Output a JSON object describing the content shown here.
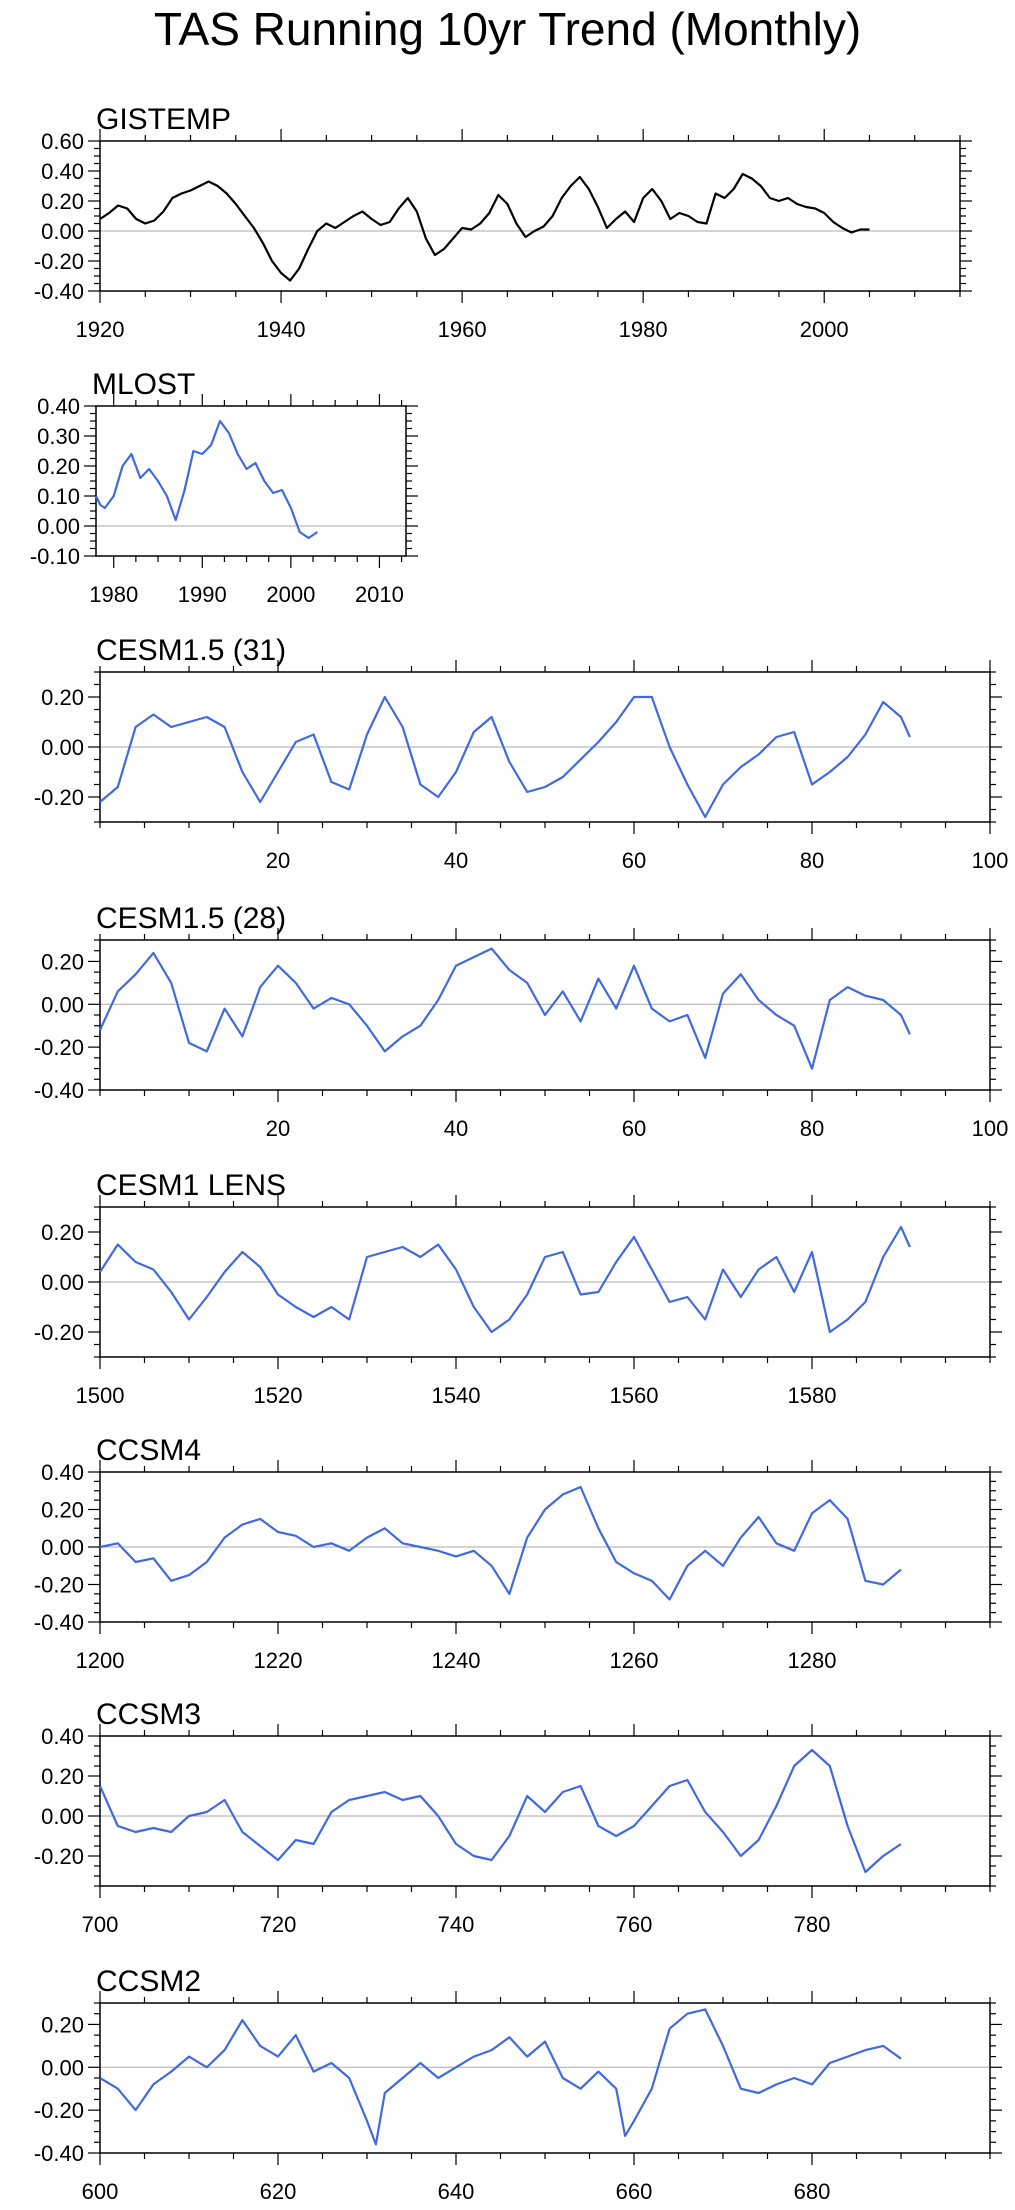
{
  "title": "TAS Running 10yr Trend (Monthly)",
  "colors": {
    "observed": "#000000",
    "model": "#4169e1",
    "zero_line": "#aaaaaa",
    "axis": "#000000"
  },
  "chart_data": [
    {
      "type": "line",
      "title": "GISTEMP",
      "xlim": [
        1920,
        2015
      ],
      "ylim": [
        -0.4,
        0.6
      ],
      "xticks": [
        1920,
        1940,
        1960,
        1980,
        2000
      ],
      "xtick_labels": [
        "1920",
        "1940",
        "1960",
        "1980",
        "2000"
      ],
      "yticks": [
        -0.4,
        -0.2,
        0.0,
        0.2,
        0.4,
        0.6
      ],
      "ytick_labels": [
        "-0.40",
        "-0.20",
        "0.00",
        "0.20",
        "0.40",
        "0.60"
      ],
      "series": [
        {
          "color": "#000000",
          "x": [
            1920,
            1921,
            1922,
            1923,
            1924,
            1925,
            1926,
            1927,
            1928,
            1929,
            1930,
            1931,
            1932,
            1933,
            1934,
            1935,
            1936,
            1937,
            1938,
            1939,
            1940,
            1941,
            1942,
            1943,
            1944,
            1945,
            1946,
            1947,
            1948,
            1949,
            1950,
            1951,
            1952,
            1953,
            1954,
            1955,
            1956,
            1957,
            1958,
            1959,
            1960,
            1961,
            1962,
            1963,
            1964,
            1965,
            1966,
            1967,
            1968,
            1969,
            1970,
            1971,
            1972,
            1973,
            1974,
            1975,
            1976,
            1977,
            1978,
            1979,
            1980,
            1981,
            1982,
            1983,
            1984,
            1985,
            1986,
            1987,
            1988,
            1989,
            1990,
            1991,
            1992,
            1993,
            1994,
            1995,
            1996,
            1997,
            1998,
            1999,
            2000,
            2001,
            2002,
            2003,
            2004,
            2005
          ],
          "y": [
            0.08,
            0.12,
            0.17,
            0.15,
            0.08,
            0.05,
            0.07,
            0.13,
            0.22,
            0.25,
            0.27,
            0.3,
            0.33,
            0.3,
            0.25,
            0.18,
            0.1,
            0.02,
            -0.08,
            -0.2,
            -0.28,
            -0.33,
            -0.25,
            -0.12,
            0.0,
            0.05,
            0.02,
            0.06,
            0.1,
            0.13,
            0.08,
            0.04,
            0.06,
            0.15,
            0.22,
            0.13,
            -0.05,
            -0.16,
            -0.12,
            -0.05,
            0.02,
            0.01,
            0.05,
            0.12,
            0.24,
            0.18,
            0.05,
            -0.04,
            0.0,
            0.03,
            0.1,
            0.22,
            0.3,
            0.36,
            0.28,
            0.16,
            0.02,
            0.08,
            0.13,
            0.06,
            0.22,
            0.28,
            0.2,
            0.08,
            0.12,
            0.1,
            0.06,
            0.05,
            0.25,
            0.22,
            0.28,
            0.38,
            0.35,
            0.3,
            0.22,
            0.2,
            0.22,
            0.18,
            0.16,
            0.15,
            0.12,
            0.06,
            0.02,
            -0.01,
            0.01,
            0.01
          ]
        }
      ]
    },
    {
      "type": "line",
      "title": "MLOST",
      "xlim": [
        1978,
        2013
      ],
      "ylim": [
        -0.1,
        0.4
      ],
      "xticks": [
        1980,
        1990,
        2000,
        2010
      ],
      "xtick_labels": [
        "1980",
        "1990",
        "2000",
        "2010"
      ],
      "yticks": [
        -0.1,
        0.0,
        0.1,
        0.2,
        0.3,
        0.4
      ],
      "ytick_labels": [
        "-0.10",
        "0.00",
        "0.10",
        "0.20",
        "0.30",
        "0.40"
      ],
      "series": [
        {
          "color": "#4169e1",
          "x": [
            1978,
            1978.5,
            1979,
            1980,
            1981,
            1982,
            1983,
            1984,
            1985,
            1986,
            1987,
            1988,
            1989,
            1990,
            1991,
            1992,
            1993,
            1994,
            1995,
            1996,
            1997,
            1998,
            1999,
            2000,
            2001,
            2002,
            2003
          ],
          "y": [
            0.1,
            0.07,
            0.06,
            0.1,
            0.2,
            0.24,
            0.16,
            0.19,
            0.15,
            0.1,
            0.02,
            0.12,
            0.25,
            0.24,
            0.27,
            0.35,
            0.31,
            0.24,
            0.19,
            0.21,
            0.15,
            0.11,
            0.12,
            0.06,
            -0.02,
            -0.04,
            -0.02
          ]
        }
      ]
    },
    {
      "type": "line",
      "title": "CESM1.5 (31)",
      "xlim": [
        0,
        100
      ],
      "ylim": [
        -0.3,
        0.3
      ],
      "xticks": [
        20,
        40,
        60,
        80,
        100
      ],
      "xtick_labels": [
        "20",
        "40",
        "60",
        "80",
        "100"
      ],
      "yticks": [
        -0.2,
        0.0,
        0.2
      ],
      "ytick_labels": [
        "-0.20",
        "0.00",
        "0.20"
      ],
      "series": [
        {
          "color": "#4169e1",
          "x": [
            0,
            2,
            4,
            6,
            8,
            10,
            12,
            14,
            16,
            18,
            20,
            22,
            24,
            26,
            28,
            30,
            32,
            34,
            36,
            38,
            40,
            42,
            44,
            46,
            48,
            50,
            52,
            54,
            56,
            58,
            60,
            62,
            64,
            66,
            68,
            70,
            72,
            74,
            76,
            78,
            80,
            82,
            84,
            86,
            88,
            90,
            91
          ],
          "y": [
            -0.22,
            -0.16,
            0.08,
            0.13,
            0.08,
            0.1,
            0.12,
            0.08,
            -0.1,
            -0.22,
            -0.1,
            0.02,
            0.05,
            -0.14,
            -0.17,
            0.05,
            0.2,
            0.08,
            -0.15,
            -0.2,
            -0.1,
            0.06,
            0.12,
            -0.06,
            -0.18,
            -0.16,
            -0.12,
            -0.05,
            0.02,
            0.1,
            0.2,
            0.2,
            0.0,
            -0.15,
            -0.28,
            -0.15,
            -0.08,
            -0.03,
            0.04,
            0.06,
            -0.15,
            -0.1,
            -0.04,
            0.05,
            0.18,
            0.12,
            0.04
          ]
        }
      ]
    },
    {
      "type": "line",
      "title": "CESM1.5 (28)",
      "xlim": [
        0,
        100
      ],
      "ylim": [
        -0.4,
        0.3
      ],
      "xticks": [
        20,
        40,
        60,
        80,
        100
      ],
      "xtick_labels": [
        "20",
        "40",
        "60",
        "80",
        "100"
      ],
      "yticks": [
        -0.4,
        -0.2,
        0.0,
        0.2
      ],
      "ytick_labels": [
        "-0.40",
        "-0.20",
        "0.00",
        "0.20"
      ],
      "series": [
        {
          "color": "#4169e1",
          "x": [
            0,
            2,
            4,
            6,
            8,
            10,
            12,
            14,
            16,
            18,
            20,
            22,
            24,
            26,
            28,
            30,
            32,
            34,
            36,
            38,
            40,
            42,
            44,
            46,
            48,
            50,
            52,
            54,
            56,
            58,
            60,
            62,
            64,
            66,
            68,
            70,
            72,
            74,
            76,
            78,
            80,
            82,
            84,
            86,
            88,
            90,
            91
          ],
          "y": [
            -0.12,
            0.06,
            0.14,
            0.24,
            0.1,
            -0.18,
            -0.22,
            -0.02,
            -0.15,
            0.08,
            0.18,
            0.1,
            -0.02,
            0.03,
            0.0,
            -0.1,
            -0.22,
            -0.15,
            -0.1,
            0.02,
            0.18,
            0.22,
            0.26,
            0.16,
            0.1,
            -0.05,
            0.06,
            -0.08,
            0.12,
            -0.02,
            0.18,
            -0.02,
            -0.08,
            -0.05,
            -0.25,
            0.05,
            0.14,
            0.02,
            -0.05,
            -0.1,
            -0.3,
            0.02,
            0.08,
            0.04,
            0.02,
            -0.05,
            -0.14
          ]
        }
      ]
    },
    {
      "type": "line",
      "title": "CESM1 LENS",
      "xlim": [
        1500,
        1600
      ],
      "ylim": [
        -0.3,
        0.3
      ],
      "xticks": [
        1500,
        1520,
        1540,
        1560,
        1580
      ],
      "xtick_labels": [
        "1500",
        "1520",
        "1540",
        "1560",
        "1580"
      ],
      "yticks": [
        -0.2,
        0.0,
        0.2
      ],
      "ytick_labels": [
        "-0.20",
        "0.00",
        "0.20"
      ],
      "series": [
        {
          "color": "#4169e1",
          "x": [
            1500,
            1502,
            1504,
            1506,
            1508,
            1510,
            1512,
            1514,
            1516,
            1518,
            1520,
            1522,
            1524,
            1526,
            1528,
            1530,
            1532,
            1534,
            1536,
            1538,
            1540,
            1542,
            1544,
            1546,
            1548,
            1550,
            1552,
            1554,
            1556,
            1558,
            1560,
            1562,
            1564,
            1566,
            1568,
            1570,
            1572,
            1574,
            1576,
            1578,
            1580,
            1582,
            1584,
            1586,
            1588,
            1590,
            1591
          ],
          "y": [
            0.04,
            0.15,
            0.08,
            0.05,
            -0.04,
            -0.15,
            -0.06,
            0.04,
            0.12,
            0.06,
            -0.05,
            -0.1,
            -0.14,
            -0.1,
            -0.15,
            0.1,
            0.12,
            0.14,
            0.1,
            0.15,
            0.05,
            -0.1,
            -0.2,
            -0.15,
            -0.05,
            0.1,
            0.12,
            -0.05,
            -0.04,
            0.08,
            0.18,
            0.05,
            -0.08,
            -0.06,
            -0.15,
            0.05,
            -0.06,
            0.05,
            0.1,
            -0.04,
            0.12,
            -0.2,
            -0.15,
            -0.08,
            0.1,
            0.22,
            0.14
          ]
        }
      ]
    },
    {
      "type": "line",
      "title": "CCSM4",
      "xlim": [
        1200,
        1300
      ],
      "ylim": [
        -0.4,
        0.4
      ],
      "xticks": [
        1200,
        1220,
        1240,
        1260,
        1280
      ],
      "xtick_labels": [
        "1200",
        "1220",
        "1240",
        "1260",
        "1280"
      ],
      "yticks": [
        -0.4,
        -0.2,
        0.0,
        0.2,
        0.4
      ],
      "ytick_labels": [
        "-0.40",
        "-0.20",
        "0.00",
        "0.20",
        "0.40"
      ],
      "series": [
        {
          "color": "#4169e1",
          "x": [
            1200,
            1202,
            1204,
            1206,
            1208,
            1210,
            1212,
            1214,
            1216,
            1218,
            1220,
            1222,
            1224,
            1226,
            1228,
            1230,
            1232,
            1234,
            1236,
            1238,
            1240,
            1242,
            1244,
            1246,
            1248,
            1250,
            1252,
            1254,
            1256,
            1258,
            1260,
            1262,
            1264,
            1266,
            1268,
            1270,
            1272,
            1274,
            1276,
            1278,
            1280,
            1282,
            1284,
            1286,
            1288,
            1290
          ],
          "y": [
            0.0,
            0.02,
            -0.08,
            -0.06,
            -0.18,
            -0.15,
            -0.08,
            0.05,
            0.12,
            0.15,
            0.08,
            0.06,
            0.0,
            0.02,
            -0.02,
            0.05,
            0.1,
            0.02,
            0.0,
            -0.02,
            -0.05,
            -0.02,
            -0.1,
            -0.25,
            0.05,
            0.2,
            0.28,
            0.32,
            0.1,
            -0.08,
            -0.14,
            -0.18,
            -0.28,
            -0.1,
            -0.02,
            -0.1,
            0.05,
            0.16,
            0.02,
            -0.02,
            0.18,
            0.25,
            0.15,
            -0.18,
            -0.2,
            -0.12
          ]
        }
      ]
    },
    {
      "type": "line",
      "title": "CCSM3",
      "xlim": [
        700,
        800
      ],
      "ylim": [
        -0.35,
        0.4
      ],
      "xticks": [
        700,
        720,
        740,
        760,
        780
      ],
      "xtick_labels": [
        "700",
        "720",
        "740",
        "760",
        "780"
      ],
      "yticks": [
        -0.2,
        0.0,
        0.2,
        0.4
      ],
      "ytick_labels": [
        "-0.20",
        "0.00",
        "0.20",
        "0.40"
      ],
      "series": [
        {
          "color": "#4169e1",
          "x": [
            700,
            702,
            704,
            706,
            708,
            710,
            712,
            714,
            716,
            718,
            720,
            722,
            724,
            726,
            728,
            730,
            732,
            734,
            736,
            738,
            740,
            742,
            744,
            746,
            748,
            750,
            752,
            754,
            756,
            758,
            760,
            762,
            764,
            766,
            768,
            770,
            772,
            774,
            776,
            778,
            780,
            782,
            784,
            786,
            788,
            790
          ],
          "y": [
            0.15,
            -0.05,
            -0.08,
            -0.06,
            -0.08,
            0.0,
            0.02,
            0.08,
            -0.08,
            -0.15,
            -0.22,
            -0.12,
            -0.14,
            0.02,
            0.08,
            0.1,
            0.12,
            0.08,
            0.1,
            0.0,
            -0.14,
            -0.2,
            -0.22,
            -0.1,
            0.1,
            0.02,
            0.12,
            0.15,
            -0.05,
            -0.1,
            -0.05,
            0.05,
            0.15,
            0.18,
            0.02,
            -0.08,
            -0.2,
            -0.12,
            0.05,
            0.25,
            0.33,
            0.25,
            -0.05,
            -0.28,
            -0.2,
            -0.14
          ]
        }
      ]
    },
    {
      "type": "line",
      "title": "CCSM2",
      "xlim": [
        600,
        700
      ],
      "ylim": [
        -0.4,
        0.3
      ],
      "xticks": [
        600,
        620,
        640,
        660,
        680
      ],
      "xtick_labels": [
        "600",
        "620",
        "640",
        "660",
        "680"
      ],
      "yticks": [
        -0.4,
        -0.2,
        0.0,
        0.2
      ],
      "ytick_labels": [
        "-0.40",
        "-0.20",
        "0.00",
        "0.20"
      ],
      "series": [
        {
          "color": "#4169e1",
          "x": [
            600,
            602,
            604,
            606,
            608,
            610,
            612,
            614,
            616,
            618,
            620,
            622,
            624,
            626,
            628,
            630,
            631,
            632,
            634,
            636,
            638,
            640,
            642,
            644,
            646,
            648,
            650,
            652,
            654,
            656,
            658,
            659,
            660,
            662,
            664,
            666,
            668,
            670,
            672,
            674,
            676,
            678,
            680,
            682,
            684,
            686,
            688,
            690
          ],
          "y": [
            -0.05,
            -0.1,
            -0.2,
            -0.08,
            -0.02,
            0.05,
            0.0,
            0.08,
            0.22,
            0.1,
            0.05,
            0.15,
            -0.02,
            0.02,
            -0.05,
            -0.25,
            -0.36,
            -0.12,
            -0.05,
            0.02,
            -0.05,
            0.0,
            0.05,
            0.08,
            0.14,
            0.05,
            0.12,
            -0.05,
            -0.1,
            -0.02,
            -0.1,
            -0.32,
            -0.25,
            -0.1,
            0.18,
            0.25,
            0.27,
            0.1,
            -0.1,
            -0.12,
            -0.08,
            -0.05,
            -0.08,
            0.02,
            0.05,
            0.08,
            0.1,
            0.04
          ]
        }
      ]
    }
  ]
}
